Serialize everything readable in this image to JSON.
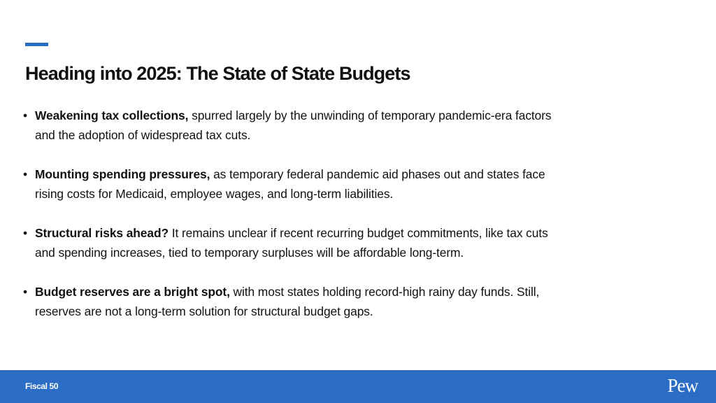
{
  "slide": {
    "title": "Heading into 2025: The State of State Budgets",
    "accent_color": "#2b6cc4",
    "bullets": [
      {
        "bold": "Weakening tax collections,",
        "line1": " spurred largely by the unwinding of temporary pandemic-era factors",
        "line2": "and the adoption of widespread tax cuts."
      },
      {
        "bold": "Mounting spending pressures,",
        "line1": " as temporary federal pandemic aid phases out and states face",
        "line2": "rising costs for Medicaid, employee wages, and long-term liabilities."
      },
      {
        "bold": "Structural risks ahead?",
        "line1": " It remains unclear if recent recurring budget commitments, like tax cuts",
        "line2": "and spending increases, tied to temporary surpluses will be affordable long-term."
      },
      {
        "bold": "Budget reserves are a bright spot,",
        "line1": " with most states holding record-high rainy day funds. Still,",
        "line2": "reserves are not a long-term solution for structural budget gaps."
      }
    ]
  },
  "footer": {
    "label": "Fiscal 50",
    "logo": "Pew",
    "background_color": "#2b6cc4"
  }
}
